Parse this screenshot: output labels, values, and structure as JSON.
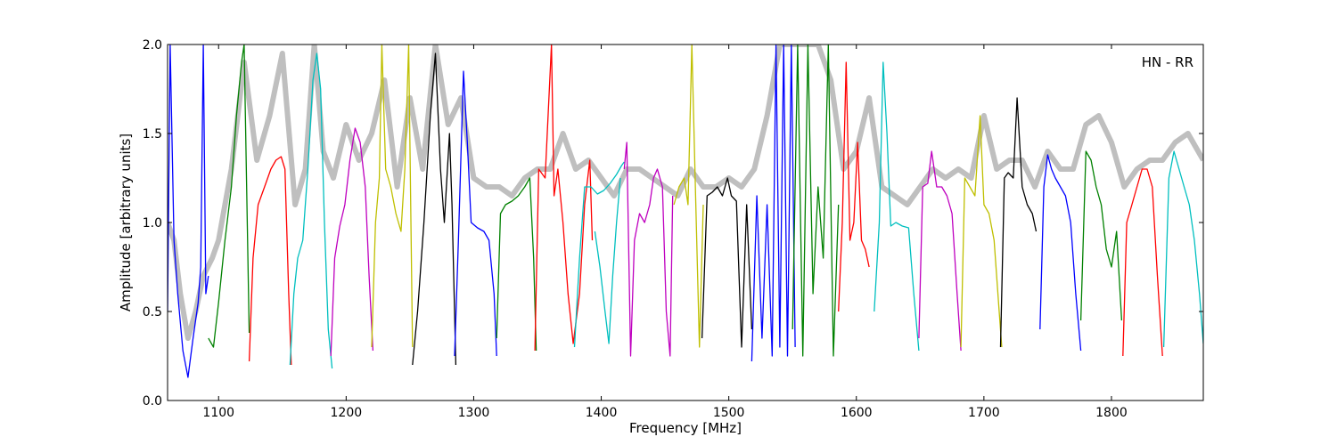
{
  "chart_data": {
    "type": "line",
    "title": "",
    "annotation": "HN - RR",
    "xlabel": "Frequency [MHz]",
    "ylabel": "Amplitude [arbitrary units]",
    "xlim": [
      1060,
      1872
    ],
    "ylim": [
      0.0,
      2.0
    ],
    "xticks": [
      1100,
      1200,
      1300,
      1400,
      1500,
      1600,
      1700,
      1800
    ],
    "yticks": [
      0.0,
      0.5,
      1.0,
      1.5,
      2.0
    ],
    "xtick_labels": [
      "1100",
      "1200",
      "1300",
      "1400",
      "1500",
      "1600",
      "1700",
      "1800"
    ],
    "ytick_labels": [
      "0.0",
      "0.5",
      "1.0",
      "1.5",
      "2.0"
    ],
    "grid": false,
    "background_trace_color": "#bfbfbf",
    "band_colors": [
      "#0000ff",
      "#008000",
      "#ff0000",
      "#00bfbf",
      "#bf00bf",
      "#bfbf00",
      "#000000"
    ],
    "bands": [
      {
        "color": "#0000ff",
        "x": [
          1060,
          1062,
          1065,
          1068,
          1072,
          1076,
          1080,
          1084,
          1086,
          1088,
          1090,
          1092
        ],
        "y": [
          0.5,
          2.0,
          0.9,
          0.6,
          0.28,
          0.13,
          0.35,
          0.55,
          0.75,
          2.0,
          0.6,
          0.7
        ]
      },
      {
        "color": "#008000",
        "x": [
          1092,
          1096,
          1100,
          1105,
          1110,
          1114,
          1118,
          1120,
          1122,
          1124
        ],
        "y": [
          0.35,
          0.3,
          0.55,
          0.9,
          1.2,
          1.6,
          1.9,
          2.0,
          1.2,
          0.38
        ]
      },
      {
        "color": "#ff0000",
        "x": [
          1124,
          1127,
          1131,
          1136,
          1141,
          1145,
          1149,
          1152,
          1155,
          1157
        ],
        "y": [
          0.22,
          0.8,
          1.1,
          1.2,
          1.3,
          1.35,
          1.37,
          1.3,
          0.6,
          0.2
        ]
      },
      {
        "color": "#00bfbf",
        "x": [
          1156,
          1159,
          1162,
          1166,
          1170,
          1174,
          1177,
          1180,
          1183,
          1186,
          1189
        ],
        "y": [
          0.2,
          0.6,
          0.8,
          0.9,
          1.3,
          1.8,
          1.95,
          1.75,
          1.0,
          0.4,
          0.18
        ]
      },
      {
        "color": "#bf00bf",
        "x": [
          1188,
          1191,
          1195,
          1199,
          1203,
          1207,
          1211,
          1215,
          1218,
          1221
        ],
        "y": [
          0.25,
          0.8,
          0.98,
          1.1,
          1.35,
          1.53,
          1.45,
          1.2,
          0.7,
          0.28
        ]
      },
      {
        "color": "#bfbf00",
        "x": [
          1220,
          1223,
          1226,
          1228,
          1231,
          1235,
          1239,
          1243,
          1246,
          1249,
          1252
        ],
        "y": [
          0.3,
          1.0,
          1.25,
          2.0,
          1.3,
          1.2,
          1.05,
          0.95,
          1.3,
          2.0,
          0.3
        ]
      },
      {
        "color": "#000000",
        "x": [
          1252,
          1256,
          1261,
          1266,
          1270,
          1274,
          1277,
          1281,
          1283,
          1286
        ],
        "y": [
          0.2,
          0.5,
          1.0,
          1.6,
          1.95,
          1.3,
          1.0,
          1.5,
          1.1,
          0.2
        ]
      },
      {
        "color": "#0000ff",
        "x": [
          1285,
          1288,
          1292,
          1295,
          1298,
          1303,
          1308,
          1312,
          1316,
          1318
        ],
        "y": [
          0.25,
          0.9,
          1.85,
          1.45,
          1.0,
          0.97,
          0.95,
          0.9,
          0.6,
          0.25
        ]
      },
      {
        "color": "#008000",
        "x": [
          1318,
          1321,
          1325,
          1330,
          1335,
          1340,
          1344,
          1347,
          1349
        ],
        "y": [
          0.35,
          1.05,
          1.1,
          1.12,
          1.15,
          1.2,
          1.25,
          0.8,
          0.28
        ]
      },
      {
        "color": "#ff0000",
        "x": [
          1348,
          1351,
          1356,
          1361,
          1363,
          1366,
          1370,
          1374,
          1378,
          1383,
          1387,
          1391,
          1393
        ],
        "y": [
          0.28,
          1.3,
          1.25,
          2.0,
          1.15,
          1.3,
          1.0,
          0.6,
          0.32,
          0.6,
          1.1,
          1.35,
          0.9
        ]
      },
      {
        "color": "#00bfbf",
        "x": [
          1379,
          1383,
          1387,
          1392,
          1397,
          1402,
          1407,
          1412,
          1416,
          1418
        ],
        "y": [
          0.3,
          0.8,
          1.2,
          1.2,
          1.16,
          1.18,
          1.22,
          1.27,
          1.32,
          1.34
        ]
      },
      {
        "color": "#00bfbf",
        "x": [
          1395,
          1399,
          1403,
          1406,
          1409,
          1412,
          1415
        ],
        "y": [
          0.95,
          0.75,
          0.5,
          0.32,
          0.7,
          1.0,
          1.25
        ]
      },
      {
        "color": "#bf00bf",
        "x": [
          1418,
          1420,
          1423,
          1426,
          1430,
          1434,
          1438,
          1441,
          1444,
          1448,
          1451,
          1454,
          1456
        ],
        "y": [
          1.3,
          1.45,
          0.25,
          0.9,
          1.05,
          1.0,
          1.1,
          1.25,
          1.3,
          1.2,
          0.5,
          0.25,
          1.15
        ]
      },
      {
        "color": "#bfbf00",
        "x": [
          1457,
          1461,
          1465,
          1468,
          1471,
          1474,
          1477,
          1480
        ],
        "y": [
          1.1,
          1.2,
          1.25,
          1.1,
          2.0,
          1.15,
          0.3,
          1.1
        ]
      },
      {
        "color": "#000000",
        "x": [
          1479,
          1483,
          1487,
          1491,
          1495,
          1499,
          1502,
          1506,
          1510,
          1514,
          1518
        ],
        "y": [
          0.35,
          1.15,
          1.17,
          1.2,
          1.15,
          1.25,
          1.15,
          1.12,
          0.3,
          1.1,
          0.4
        ]
      },
      {
        "color": "#0000ff",
        "x": [
          1518,
          1522,
          1526,
          1530,
          1534,
          1537,
          1540,
          1543,
          1546,
          1549,
          1552
        ],
        "y": [
          0.22,
          1.15,
          0.35,
          1.1,
          0.25,
          2.0,
          0.3,
          2.0,
          0.25,
          2.0,
          0.3
        ]
      },
      {
        "color": "#008000",
        "x": [
          1550,
          1554,
          1558,
          1562,
          1566,
          1570,
          1574,
          1578,
          1582,
          1586
        ],
        "y": [
          0.4,
          2.0,
          0.25,
          2.0,
          0.6,
          1.2,
          0.8,
          2.0,
          0.25,
          1.1
        ]
      },
      {
        "color": "#ff0000",
        "x": [
          1586,
          1589,
          1592,
          1595,
          1598,
          1601,
          1604,
          1607,
          1610
        ],
        "y": [
          0.5,
          1.0,
          1.9,
          0.9,
          1.0,
          1.45,
          0.9,
          0.85,
          0.75
        ]
      },
      {
        "color": "#00bfbf",
        "x": [
          1614,
          1618,
          1621,
          1624,
          1627,
          1631,
          1636,
          1641,
          1645,
          1649
        ],
        "y": [
          0.5,
          1.0,
          1.9,
          1.5,
          0.98,
          1.0,
          0.98,
          0.97,
          0.6,
          0.28
        ]
      },
      {
        "color": "#bf00bf",
        "x": [
          1649,
          1652,
          1656,
          1659,
          1663,
          1667,
          1671,
          1675,
          1679,
          1682
        ],
        "y": [
          0.35,
          1.2,
          1.22,
          1.4,
          1.2,
          1.2,
          1.15,
          1.05,
          0.6,
          0.28
        ]
      },
      {
        "color": "#bfbf00",
        "x": [
          1682,
          1685,
          1689,
          1693,
          1697,
          1700,
          1704,
          1708,
          1712,
          1714
        ],
        "y": [
          0.3,
          1.25,
          1.2,
          1.15,
          1.6,
          1.1,
          1.05,
          0.9,
          0.5,
          0.3
        ]
      },
      {
        "color": "#000000",
        "x": [
          1713,
          1716,
          1719,
          1723,
          1726,
          1730,
          1734,
          1738,
          1741
        ],
        "y": [
          0.3,
          1.25,
          1.28,
          1.25,
          1.7,
          1.2,
          1.1,
          1.05,
          0.95
        ]
      },
      {
        "color": "#0000ff",
        "x": [
          1744,
          1747,
          1750,
          1753,
          1756,
          1760,
          1764,
          1768,
          1772,
          1776
        ],
        "y": [
          0.4,
          1.2,
          1.38,
          1.3,
          1.25,
          1.2,
          1.15,
          1.0,
          0.6,
          0.28
        ]
      },
      {
        "color": "#008000",
        "x": [
          1776,
          1780,
          1784,
          1788,
          1792,
          1796,
          1800,
          1804,
          1808
        ],
        "y": [
          0.45,
          1.4,
          1.35,
          1.2,
          1.1,
          0.85,
          0.75,
          0.95,
          0.45
        ]
      },
      {
        "color": "#ff0000",
        "x": [
          1809,
          1812,
          1816,
          1820,
          1824,
          1828,
          1832,
          1836,
          1840
        ],
        "y": [
          0.25,
          1.0,
          1.1,
          1.2,
          1.3,
          1.3,
          1.2,
          0.7,
          0.25
        ]
      },
      {
        "color": "#00bfbf",
        "x": [
          1841,
          1845,
          1849,
          1853,
          1857,
          1861,
          1865,
          1869,
          1872
        ],
        "y": [
          0.3,
          1.25,
          1.4,
          1.3,
          1.2,
          1.1,
          0.9,
          0.6,
          0.32
        ]
      }
    ],
    "background": {
      "x": [
        1060,
        1065,
        1070,
        1076,
        1082,
        1088,
        1095,
        1100,
        1110,
        1120,
        1130,
        1140,
        1150,
        1160,
        1168,
        1175,
        1182,
        1190,
        1200,
        1210,
        1220,
        1230,
        1240,
        1250,
        1260,
        1270,
        1280,
        1290,
        1300,
        1310,
        1320,
        1330,
        1340,
        1350,
        1360,
        1370,
        1380,
        1390,
        1400,
        1410,
        1420,
        1430,
        1440,
        1450,
        1460,
        1470,
        1480,
        1490,
        1500,
        1510,
        1520,
        1530,
        1540,
        1550,
        1560,
        1570,
        1580,
        1590,
        1600,
        1610,
        1620,
        1630,
        1640,
        1650,
        1660,
        1670,
        1680,
        1690,
        1700,
        1710,
        1720,
        1730,
        1740,
        1750,
        1760,
        1770,
        1780,
        1790,
        1800,
        1810,
        1820,
        1830,
        1840,
        1850,
        1860,
        1872
      ],
      "y": [
        1.0,
        0.9,
        0.6,
        0.35,
        0.5,
        0.7,
        0.8,
        0.9,
        1.3,
        1.9,
        1.35,
        1.6,
        1.95,
        1.1,
        1.3,
        2.0,
        1.4,
        1.25,
        1.55,
        1.35,
        1.5,
        1.8,
        1.2,
        1.7,
        1.3,
        2.0,
        1.55,
        1.7,
        1.25,
        1.2,
        1.2,
        1.15,
        1.25,
        1.3,
        1.3,
        1.5,
        1.3,
        1.35,
        1.25,
        1.15,
        1.3,
        1.3,
        1.25,
        1.2,
        1.15,
        1.3,
        1.2,
        1.2,
        1.25,
        1.2,
        1.3,
        1.6,
        2.0,
        2.0,
        2.0,
        2.0,
        1.8,
        1.3,
        1.4,
        1.7,
        1.2,
        1.15,
        1.1,
        1.2,
        1.3,
        1.25,
        1.3,
        1.25,
        1.6,
        1.3,
        1.35,
        1.35,
        1.2,
        1.4,
        1.3,
        1.3,
        1.55,
        1.6,
        1.45,
        1.2,
        1.3,
        1.35,
        1.35,
        1.45,
        1.5,
        1.35
      ]
    }
  }
}
